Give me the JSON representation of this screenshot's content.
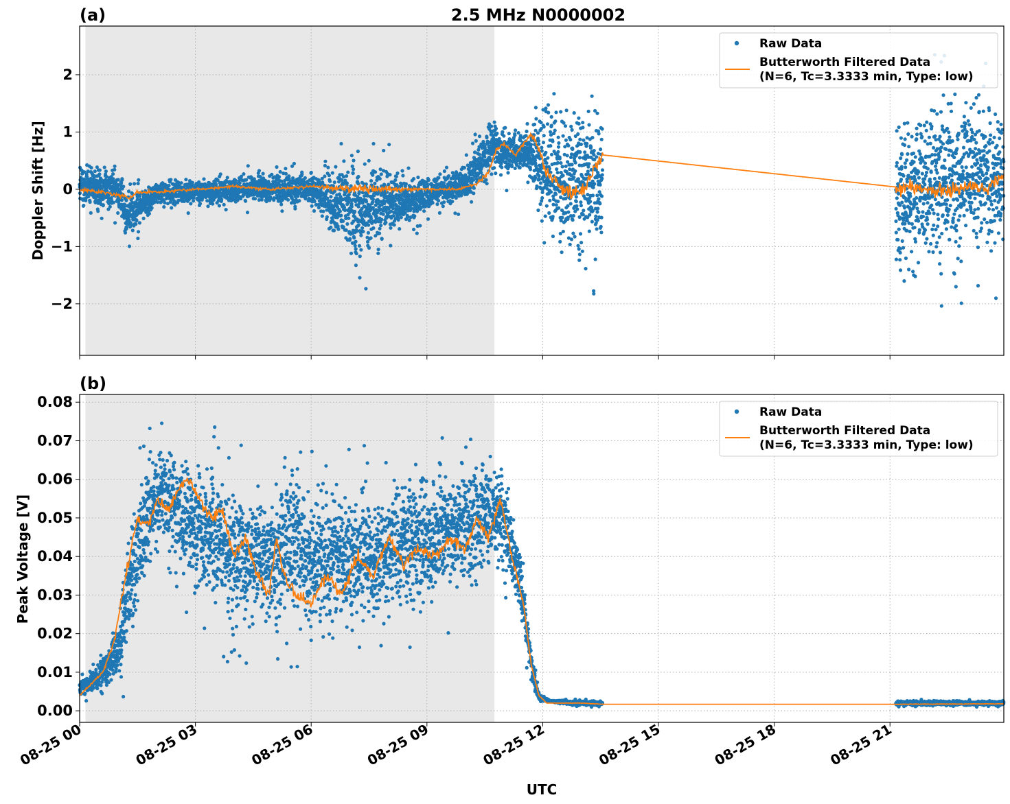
{
  "figure": {
    "title": "2.5 MHz N0000002",
    "xlabel": "UTC"
  },
  "legend": {
    "raw_label": "Raw Data",
    "filtered_line1": "Butterworth Filtered Data",
    "filtered_line2": "(N=6, Tc=3.3333 min, Type: low)",
    "position": "upper right"
  },
  "colors": {
    "raw": "#1f77b4",
    "filtered": "#ff7f0e",
    "shade": "#e8e8e8"
  },
  "chart_data": [
    {
      "panel_label": "(a)",
      "type": "scatter",
      "ylabel": "Doppler Shift [Hz]",
      "xlim_hours": [
        0,
        23.95
      ],
      "ylim": [
        -2.9,
        2.85
      ],
      "yticks": [
        2,
        1,
        0,
        -1,
        -2
      ],
      "ytick_labels": [
        "2",
        "1",
        "0",
        "−1",
        "−2"
      ],
      "grid": true,
      "shaded_span_hours": [
        0.15,
        10.75
      ],
      "data_gaps_hours": [
        [
          13.55,
          21.15
        ]
      ],
      "series": [
        {
          "name": "Raw Data",
          "kind": "points",
          "envelope_hours": [
            0,
            1,
            1.2,
            2,
            4,
            6,
            7.2,
            9,
            10,
            10.7,
            11.2,
            11.6,
            12,
            12.6,
            13.5,
            21.2,
            22,
            23,
            23.95
          ],
          "envelope_low": [
            -0.7,
            -0.6,
            -1.2,
            -0.45,
            -0.4,
            -0.5,
            -1.9,
            -0.6,
            -0.4,
            -0.1,
            0.0,
            0.1,
            -1.4,
            -2.1,
            -1.8,
            -2.6,
            -2.4,
            -2.0,
            -2.0
          ],
          "envelope_high": [
            0.8,
            0.6,
            0.25,
            0.3,
            0.4,
            0.5,
            1.15,
            0.4,
            0.6,
            1.6,
            1.2,
            1.2,
            2.3,
            2.4,
            2.2,
            2.6,
            2.5,
            2.5,
            2.3
          ]
        },
        {
          "name": "Butterworth Filtered Data",
          "kind": "line",
          "x_hours": [
            0,
            0.5,
            1,
            1.3,
            1.5,
            2,
            3,
            4,
            5,
            6,
            7,
            8,
            9,
            9.8,
            10.3,
            10.6,
            10.8,
            11.0,
            11.3,
            11.5,
            11.7,
            11.9,
            12.1,
            12.5,
            13.0,
            13.55,
            21.15,
            21.5,
            22,
            22.5,
            23,
            23.5,
            23.95
          ],
          "y": [
            0.0,
            -0.05,
            -0.1,
            -0.15,
            -0.05,
            -0.05,
            0.0,
            0.05,
            0.0,
            0.05,
            0.0,
            0.0,
            0.0,
            0.0,
            0.1,
            0.3,
            0.7,
            0.8,
            0.6,
            0.8,
            0.95,
            0.7,
            0.3,
            0.0,
            -0.05,
            0.6,
            0.04,
            0.05,
            0.0,
            -0.05,
            0.05,
            0.0,
            0.25
          ]
        }
      ]
    },
    {
      "panel_label": "(b)",
      "type": "scatter",
      "ylabel": "Peak Voltage [V]",
      "xlim_hours": [
        0,
        23.95
      ],
      "ylim": [
        -0.003,
        0.082
      ],
      "yticks": [
        0.08,
        0.07,
        0.06,
        0.05,
        0.04,
        0.03,
        0.02,
        0.01,
        0.0
      ],
      "ytick_labels": [
        "0.08",
        "0.07",
        "0.06",
        "0.05",
        "0.04",
        "0.03",
        "0.02",
        "0.01",
        "0.00"
      ],
      "xticks_hours": [
        0,
        3,
        6,
        9,
        12,
        15,
        18,
        21
      ],
      "xtick_labels": [
        "08-25 00",
        "08-25 03",
        "08-25 06",
        "08-25 09",
        "08-25 12",
        "08-25 15",
        "08-25 18",
        "08-25 21"
      ],
      "grid": true,
      "shaded_span_hours": [
        0.15,
        10.75
      ],
      "data_gaps_hours": [
        [
          13.55,
          21.15
        ]
      ],
      "series": [
        {
          "name": "Raw Data",
          "kind": "points",
          "envelope_hours": [
            0,
            0.5,
            1,
            1.3,
            1.6,
            2,
            2.5,
            3,
            3.5,
            4,
            5,
            5.5,
            6,
            7,
            8,
            9,
            10,
            10.5,
            11,
            11.4,
            11.7,
            11.9,
            12.2,
            13,
            13.55,
            21.15,
            23.95
          ],
          "envelope_low": [
            0.002,
            0.002,
            0.002,
            0.005,
            0.02,
            0.035,
            0.03,
            0.02,
            0.015,
            0.01,
            0.012,
            0.01,
            0.008,
            0.01,
            0.01,
            0.015,
            0.02,
            0.025,
            0.025,
            0.02,
            0.005,
            0.002,
            0.002,
            0.001,
            0.001,
            0.001,
            0.001
          ],
          "envelope_high": [
            0.01,
            0.015,
            0.03,
            0.06,
            0.072,
            0.076,
            0.077,
            0.076,
            0.075,
            0.07,
            0.065,
            0.075,
            0.07,
            0.07,
            0.072,
            0.074,
            0.075,
            0.076,
            0.072,
            0.05,
            0.02,
            0.005,
            0.003,
            0.003,
            0.003,
            0.003,
            0.003
          ]
        },
        {
          "name": "Butterworth Filtered Data",
          "kind": "line",
          "x_hours": [
            0,
            0.3,
            0.6,
            0.9,
            1.1,
            1.3,
            1.5,
            1.8,
            2.0,
            2.3,
            2.6,
            2.8,
            3.1,
            3.4,
            3.7,
            4.0,
            4.3,
            4.6,
            4.9,
            5.1,
            5.3,
            5.6,
            6.0,
            6.4,
            6.8,
            7.2,
            7.6,
            8.0,
            8.4,
            8.8,
            9.2,
            9.6,
            10.0,
            10.3,
            10.6,
            10.9,
            11.2,
            11.5,
            11.7,
            11.9,
            12.1,
            12.5,
            13.0,
            13.55,
            21.15,
            23.95
          ],
          "y": [
            0.004,
            0.007,
            0.01,
            0.018,
            0.03,
            0.04,
            0.05,
            0.048,
            0.055,
            0.052,
            0.058,
            0.06,
            0.055,
            0.05,
            0.052,
            0.04,
            0.045,
            0.035,
            0.03,
            0.045,
            0.035,
            0.03,
            0.028,
            0.035,
            0.03,
            0.04,
            0.035,
            0.045,
            0.038,
            0.042,
            0.04,
            0.045,
            0.042,
            0.05,
            0.045,
            0.055,
            0.04,
            0.028,
            0.012,
            0.004,
            0.002,
            0.002,
            0.002,
            0.0017,
            0.0017,
            0.0018
          ]
        }
      ]
    }
  ]
}
